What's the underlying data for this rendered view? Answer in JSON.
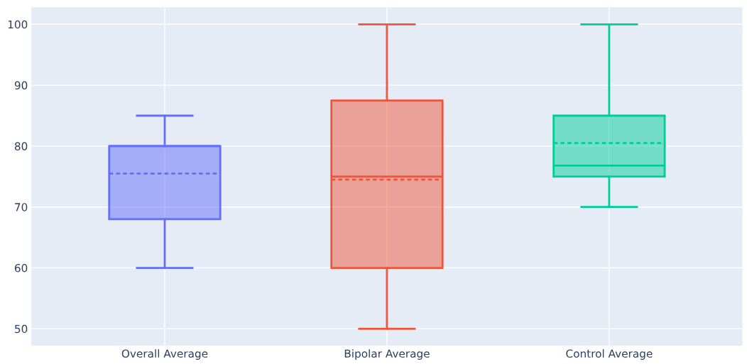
{
  "chart_data": {
    "type": "box",
    "categories": [
      "Overall Average",
      "Bipolar Average",
      "Control Average"
    ],
    "series": [
      {
        "color": "#636efa",
        "boxes": [
          {
            "low": 60,
            "q1": 68,
            "median": 80,
            "q3": 80,
            "high": 85,
            "mean": 75.5
          },
          null,
          null
        ]
      },
      {
        "color": "#ef553b",
        "boxes": [
          null,
          {
            "low": 50,
            "q1": 60,
            "median": 75,
            "q3": 87.5,
            "high": 100,
            "mean": 74.5
          },
          null
        ]
      },
      {
        "color": "#00cc96",
        "boxes": [
          null,
          null,
          {
            "low": 70,
            "q1": 75,
            "median": 76.8,
            "q3": 85,
            "high": 100,
            "mean": 80.5
          }
        ]
      }
    ],
    "ylim": [
      47.2,
      102.8
    ],
    "yticks": [
      50,
      60,
      70,
      80,
      90,
      100
    ],
    "grid": true
  }
}
